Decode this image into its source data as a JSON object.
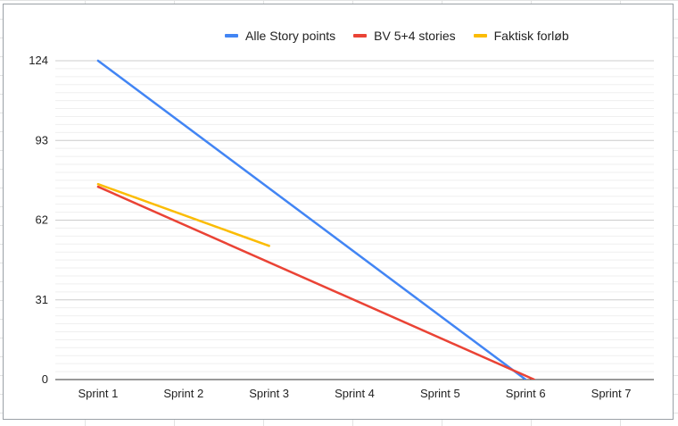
{
  "chart_data": {
    "type": "line",
    "categories": [
      "Sprint 1",
      "Sprint 2",
      "Sprint 3",
      "Sprint 4",
      "Sprint 5",
      "Sprint 6",
      "Sprint 7"
    ],
    "series": [
      {
        "name": "Alle Story points",
        "color": "#4285f4",
        "points": [
          [
            0,
            124
          ],
          [
            5,
            0
          ]
        ]
      },
      {
        "name": "BV 5+4 stories",
        "color": "#ea4335",
        "points": [
          [
            0,
            75
          ],
          [
            5.1,
            0
          ]
        ]
      },
      {
        "name": "Faktisk forløb",
        "color": "#fbbc04",
        "points": [
          [
            0,
            76
          ],
          [
            2,
            52
          ]
        ]
      }
    ],
    "y_ticks": [
      0,
      31,
      62,
      93,
      124
    ],
    "ylim": [
      0,
      124
    ],
    "minor_gridlines_per_major": 9,
    "grid": true,
    "legend": "top",
    "title": "",
    "xlabel": "",
    "ylabel": ""
  }
}
